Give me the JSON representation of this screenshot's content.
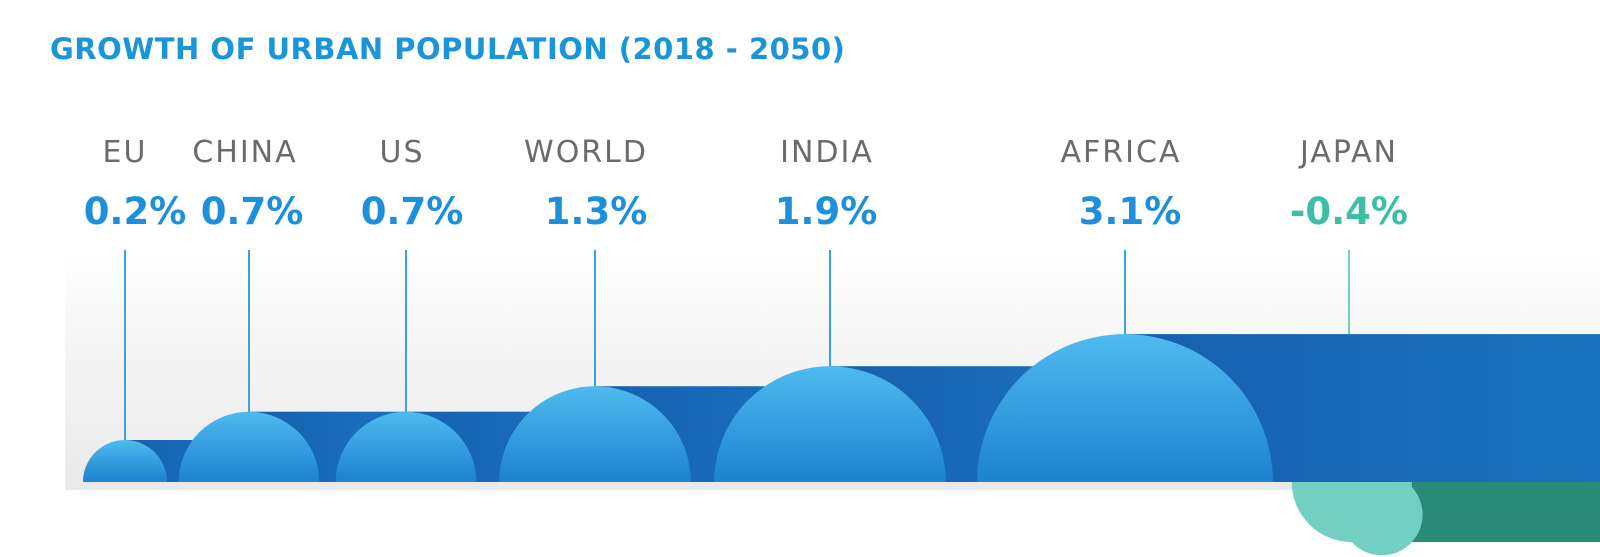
{
  "title": "GROWTH OF URBAN POPULATION (2018 - 2050)",
  "colors": {
    "title": "#1b95d9",
    "value_positive": "#1e90db",
    "value_negative": "#3dbfa5",
    "bar_dark": "#1560ae",
    "bar_mid": "#1a73c0",
    "dome_top": "#4fbaee",
    "dome_bottom": "#1d82cf",
    "leader_line": "#3aa3de",
    "negative_top": "#72cfc1",
    "negative_dark": "#2a8a78",
    "label_gray": "#6b6b6b"
  },
  "chart_data": {
    "type": "bar",
    "title": "GROWTH OF URBAN POPULATION (2018 - 2050)",
    "unit": "%",
    "categories": [
      "EU",
      "CHINA",
      "US",
      "WORLD",
      "INDIA",
      "AFRICA",
      "JAPAN"
    ],
    "values": [
      0.2,
      0.7,
      0.7,
      1.3,
      1.9,
      3.1,
      -0.4
    ],
    "value_labels": [
      "0.2%",
      "0.7%",
      "0.7%",
      "1.3%",
      "1.9%",
      "3.1%",
      "-0.4%"
    ],
    "xlabel": "",
    "ylabel": "",
    "grid": false,
    "legend": "none"
  }
}
